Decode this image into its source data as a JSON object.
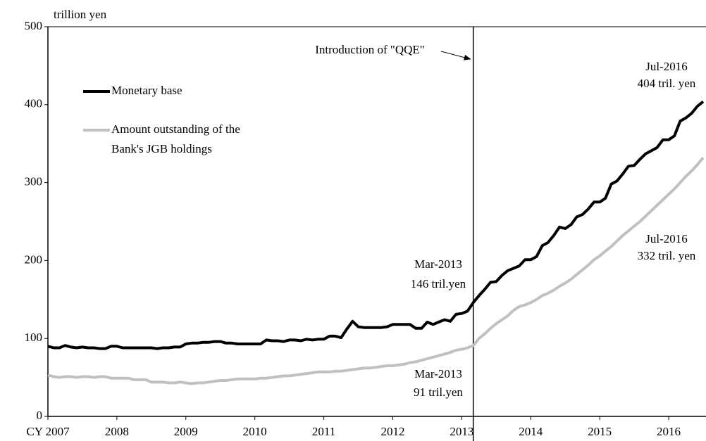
{
  "chart_data": {
    "type": "line",
    "y_axis_label": "trillion yen",
    "categories": [
      "CY 2007",
      null,
      null,
      null,
      null,
      null,
      null,
      null,
      null,
      null,
      null,
      null,
      "2008",
      null,
      null,
      null,
      null,
      null,
      null,
      null,
      null,
      null,
      null,
      null,
      "2009",
      null,
      null,
      null,
      null,
      null,
      null,
      null,
      null,
      null,
      null,
      null,
      "2010",
      null,
      null,
      null,
      null,
      null,
      null,
      null,
      null,
      null,
      null,
      null,
      "2011",
      null,
      null,
      null,
      null,
      null,
      null,
      null,
      null,
      null,
      null,
      null,
      "2012",
      null,
      null,
      null,
      null,
      null,
      null,
      null,
      null,
      null,
      null,
      null,
      "2013",
      null,
      null,
      null,
      null,
      null,
      null,
      null,
      null,
      null,
      null,
      null,
      "2014",
      null,
      null,
      null,
      null,
      null,
      null,
      null,
      null,
      null,
      null,
      null,
      "2015",
      null,
      null,
      null,
      null,
      null,
      null,
      null,
      null,
      null,
      null,
      null,
      "2016",
      null,
      null,
      null,
      null,
      null,
      null
    ],
    "series": [
      {
        "name": "Monetary base",
        "color": "#000000",
        "values": [
          90,
          88,
          88,
          91,
          89,
          88,
          89,
          88,
          88,
          87,
          87,
          90,
          90,
          88,
          88,
          88,
          88,
          88,
          88,
          87,
          88,
          88,
          89,
          89,
          93,
          94,
          94,
          95,
          95,
          96,
          96,
          94,
          94,
          93,
          93,
          93,
          93,
          93,
          98,
          97,
          97,
          96,
          98,
          98,
          97,
          99,
          98,
          99,
          99,
          103,
          103,
          101,
          112,
          122,
          115,
          114,
          114,
          114,
          114,
          115,
          118,
          118,
          118,
          118,
          113,
          113,
          121,
          118,
          121,
          124,
          122,
          131,
          132,
          135,
          146,
          155,
          163,
          172,
          173,
          181,
          187,
          190,
          193,
          201,
          201,
          205,
          219,
          223,
          232,
          243,
          241,
          246,
          256,
          259,
          266,
          275,
          275,
          280,
          298,
          302,
          311,
          321,
          322,
          330,
          337,
          341,
          345,
          355,
          355,
          360,
          379,
          383,
          389,
          398,
          404
        ]
      },
      {
        "name": "Amount outstanding of the Bank's JGB holdings",
        "color": "#c0c0c0",
        "values": [
          53,
          51,
          50,
          51,
          51,
          50,
          51,
          51,
          50,
          51,
          51,
          49,
          49,
          49,
          49,
          47,
          47,
          47,
          44,
          44,
          44,
          43,
          43,
          44,
          43,
          42,
          43,
          43,
          44,
          45,
          46,
          46,
          47,
          48,
          48,
          48,
          48,
          49,
          49,
          50,
          51,
          52,
          52,
          53,
          54,
          55,
          56,
          57,
          57,
          57,
          58,
          58,
          59,
          60,
          61,
          62,
          62,
          63,
          64,
          65,
          65,
          66,
          67,
          69,
          70,
          72,
          74,
          76,
          78,
          80,
          82,
          85,
          86,
          88,
          91,
          100,
          106,
          113,
          119,
          124,
          129,
          136,
          141,
          143,
          146,
          150,
          155,
          158,
          162,
          167,
          171,
          176,
          182,
          188,
          194,
          201,
          206,
          212,
          218,
          225,
          232,
          238,
          244,
          250,
          257,
          264,
          271,
          278,
          285,
          292,
          300,
          308,
          315,
          323,
          332
        ]
      }
    ],
    "ylim": [
      0,
      500
    ],
    "yticks": [
      0,
      100,
      200,
      300,
      400,
      500
    ],
    "annotations": [
      "Introduction of \"QQE\"",
      "Mar-2013",
      "146 tril.yen",
      "Mar-2013",
      "91 tril.yen",
      "Jul-2016",
      "404 tril. yen",
      "Jul-2016",
      "332 tril. yen"
    ]
  }
}
